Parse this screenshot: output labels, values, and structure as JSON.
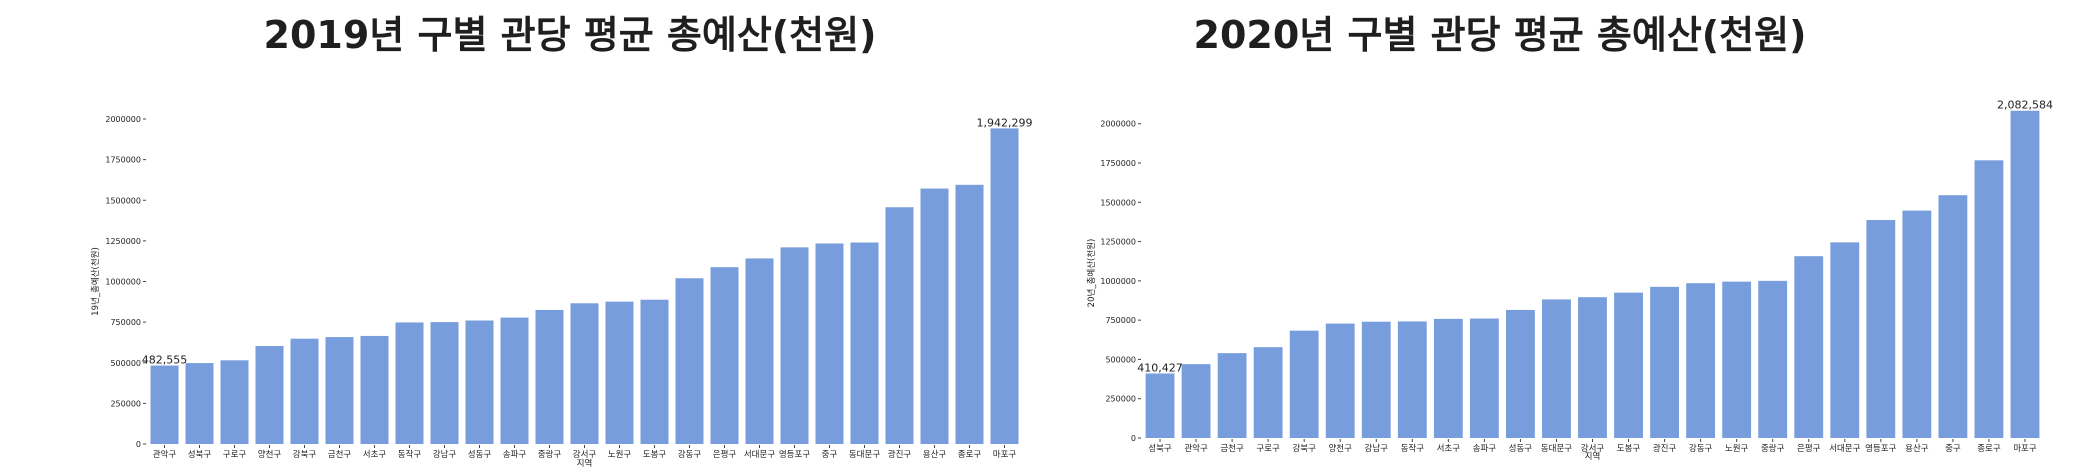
{
  "chart_data": [
    {
      "type": "bar",
      "title": "2019년 구별 관당 평균 총예산(천원)",
      "xlabel": "지역",
      "ylabel": "19년_총예산(천원)",
      "ylim": [
        0,
        2000000
      ],
      "yticks": [
        "0",
        "250000",
        "500000",
        "750000",
        "1000000",
        "1250000",
        "1500000",
        "1750000",
        "2000000"
      ],
      "grid": false,
      "categories": [
        "관악구",
        "성북구",
        "구로구",
        "양천구",
        "강북구",
        "금천구",
        "서초구",
        "동작구",
        "강남구",
        "성동구",
        "송파구",
        "중랑구",
        "강서구",
        "노원구",
        "도봉구",
        "강동구",
        "은평구",
        "서대문구",
        "영등포구",
        "중구",
        "동대문구",
        "광진구",
        "용산구",
        "종로구",
        "마포구"
      ],
      "values": [
        482555,
        498000,
        515000,
        603000,
        648000,
        658000,
        665000,
        748000,
        750000,
        760000,
        778000,
        825000,
        866000,
        876000,
        888000,
        1020000,
        1088000,
        1142000,
        1210000,
        1234000,
        1240000,
        1457000,
        1572000,
        1595000,
        1942299
      ],
      "annotations": [
        {
          "index": 0,
          "text": "482,555"
        },
        {
          "index": 24,
          "text": "1,942,299"
        }
      ]
    },
    {
      "type": "bar",
      "title": "2020년 구별 관당 평균 총예산(천원)",
      "xlabel": "지역",
      "ylabel": "20년_총예산(천원)",
      "ylim": [
        0,
        2100000
      ],
      "yticks": [
        "0",
        "250000",
        "500000",
        "750000",
        "1000000",
        "1250000",
        "1500000",
        "1750000",
        "2000000"
      ],
      "grid": false,
      "categories": [
        "성북구",
        "관악구",
        "금천구",
        "구로구",
        "강북구",
        "양천구",
        "강남구",
        "동작구",
        "서초구",
        "송파구",
        "성동구",
        "동대문구",
        "강서구",
        "도봉구",
        "광진구",
        "강동구",
        "노원구",
        "중랑구",
        "은평구",
        "서대문구",
        "영등포구",
        "용산구",
        "중구",
        "종로구",
        "마포구"
      ],
      "values": [
        410427,
        470000,
        540000,
        578000,
        683000,
        728000,
        740000,
        742000,
        758000,
        760000,
        815000,
        882000,
        896000,
        925000,
        962000,
        985000,
        995000,
        1000000,
        1157000,
        1245000,
        1387000,
        1447000,
        1545000,
        1767000,
        2082584
      ],
      "annotations": [
        {
          "index": 0,
          "text": "410,427"
        },
        {
          "index": 24,
          "text": "2,082,584"
        }
      ]
    }
  ]
}
